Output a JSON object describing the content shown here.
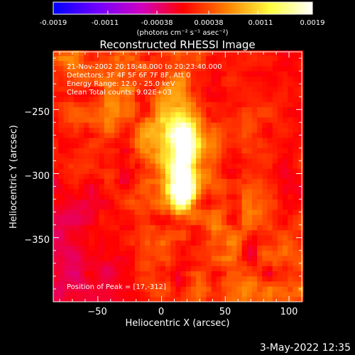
{
  "colorbar": {
    "ticks": [
      "-0.0019",
      "-0.0011",
      "-0.00038",
      "0.00038",
      "0.0011",
      "0.0019"
    ],
    "unit_label": "(photons cm⁻² s⁻¹ asec⁻²)"
  },
  "header": {
    "line1": "21-Nov-2002 20:18:48.000 to 20:23:40.000",
    "line2": "Detectors: 3F 4F 5F 6F 7F 8F, Att 0",
    "line3": "Energy Range: 12.0 - 25.0 keV",
    "line4": "Clean    Total counts: 9.02E+03"
  },
  "peak_text": "Position of Peak = [17,-312]",
  "footer_date": "3-May-2022 12:35",
  "chart_data": {
    "type": "heatmap",
    "title": "Reconstructed RHESSI Image",
    "xlabel": "Heliocentric X (arcsec)",
    "ylabel": "Heliocentric Y (arcsec)",
    "xlim": [
      -85,
      110
    ],
    "ylim": [
      -400,
      -205
    ],
    "x_ticks": [
      -50,
      0,
      50,
      100
    ],
    "y_ticks": [
      -250,
      -300,
      -350
    ],
    "x_tick_labels": [
      "−50",
      "0",
      "50",
      "100"
    ],
    "y_tick_labels": [
      "−250",
      "−300",
      "−350"
    ],
    "value_range": [
      -0.0019,
      0.0019
    ],
    "colormap": [
      "#0000ff",
      "#7000ff",
      "#d000c0",
      "#ff0000",
      "#ff8000",
      "#ffff40",
      "#ffffff"
    ],
    "peak": [
      17,
      -312
    ],
    "sources": [
      {
        "x": 17,
        "y": -312,
        "peak": 0.0019
      },
      {
        "x": 18,
        "y": -282,
        "peak": 0.0015
      },
      {
        "x": 10,
        "y": -262,
        "peak": 0.0008
      }
    ]
  }
}
